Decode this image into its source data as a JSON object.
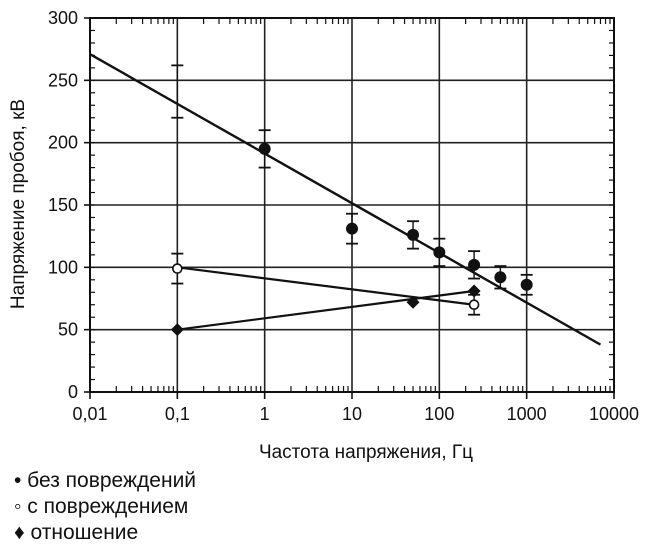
{
  "chart_data": {
    "type": "scatter",
    "title": "",
    "xlabel": "Частота напряжения, Гц",
    "ylabel": "Напряжение пробоя, кВ",
    "x_scale": "log",
    "xlim": [
      0.01,
      10000
    ],
    "ylim": [
      0,
      300
    ],
    "x_ticks": [
      0.01,
      0.1,
      1,
      10,
      100,
      1000,
      10000
    ],
    "x_tick_labels": [
      "0,01",
      "0,1",
      "1",
      "10",
      "100",
      "1000",
      "10000"
    ],
    "y_ticks": [
      0,
      50,
      100,
      150,
      200,
      250,
      300
    ],
    "y_tick_labels": [
      "0",
      "50",
      "100",
      "150",
      "200",
      "250",
      "300"
    ],
    "grid": true,
    "legend_position": "bottom-left",
    "series": [
      {
        "name": "без повреждений",
        "legend_label": "• без повреждений",
        "marker": "filled-circle",
        "color": "#111111",
        "points": [
          {
            "x": 1,
            "y": 195,
            "err": 15
          },
          {
            "x": 10,
            "y": 131,
            "err": 12
          },
          {
            "x": 50,
            "y": 126,
            "err": 11
          },
          {
            "x": 100,
            "y": 112,
            "err": 11
          },
          {
            "x": 250,
            "y": 102,
            "err": 11
          },
          {
            "x": 500,
            "y": 92,
            "err": 9
          },
          {
            "x": 1000,
            "y": 86,
            "err": 8
          }
        ],
        "single_errorbars": [
          {
            "x": 0.1,
            "y_low": 220,
            "y_high": 262
          }
        ],
        "fit_line": [
          [
            0.01,
            271
          ],
          [
            7000,
            38
          ]
        ]
      },
      {
        "name": "с повреждением",
        "legend_label": "◦ с повреждением",
        "marker": "open-circle",
        "color": "#111111",
        "points": [
          {
            "x": 0.1,
            "y": 99,
            "err": 12
          },
          {
            "x": 250,
            "y": 70,
            "err": 8
          }
        ],
        "fit_line": [
          [
            0.1,
            100
          ],
          [
            250,
            70
          ]
        ]
      },
      {
        "name": "отношение",
        "legend_label": "♦ отношение",
        "marker": "diamond",
        "color": "#111111",
        "points": [
          {
            "x": 0.1,
            "y": 50
          },
          {
            "x": 50,
            "y": 72
          },
          {
            "x": 250,
            "y": 81
          }
        ],
        "fit_line": [
          [
            0.1,
            50
          ],
          [
            250,
            81
          ]
        ]
      }
    ]
  }
}
